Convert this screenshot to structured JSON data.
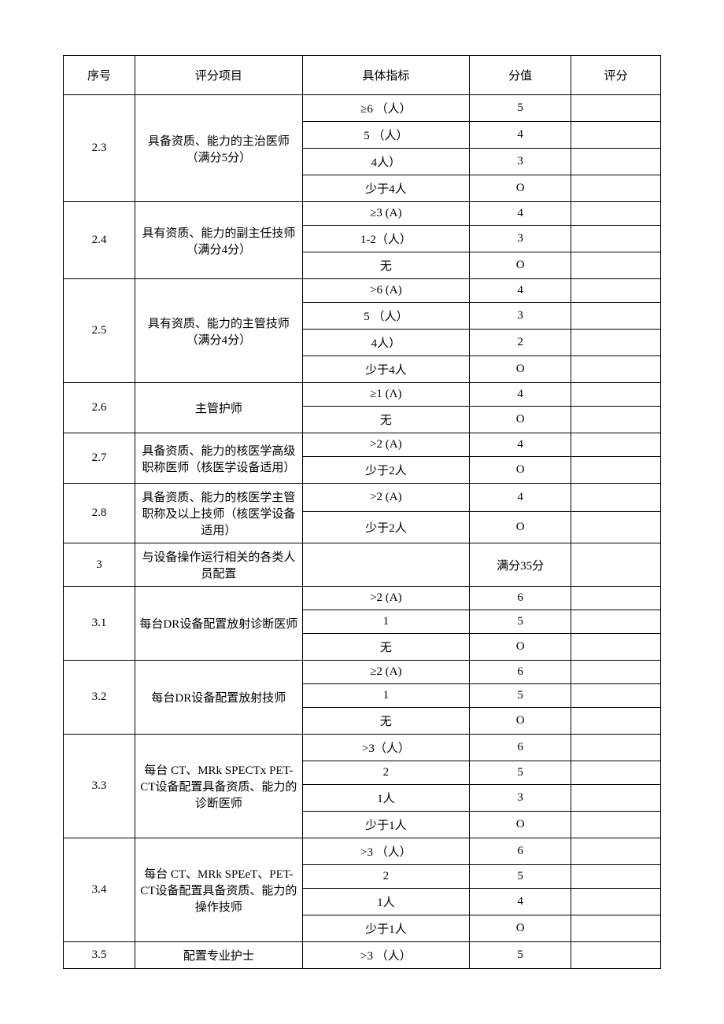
{
  "headers": [
    "序号",
    "评分项目",
    "具体指标",
    "分值",
    "评分"
  ],
  "sections": [
    {
      "id": "2.3",
      "item": "具备资质、能力的主治医师（满分5分）",
      "rows": [
        [
          "≥6 （人）",
          "5"
        ],
        [
          "5 （人）",
          "4"
        ],
        [
          "4人）",
          "3"
        ],
        [
          "少于4人",
          "O"
        ]
      ]
    },
    {
      "id": "2.4",
      "item": "具有资质、能力的副主任技师（满分4分）",
      "rows": [
        [
          "≥3 (A)",
          "4"
        ],
        [
          "1-2（人）",
          "3"
        ],
        [
          "无",
          "O"
        ]
      ]
    },
    {
      "id": "2.5",
      "item": "具有资质、能力的主管技师（满分4分）",
      "rows": [
        [
          ">6 (A)",
          "4"
        ],
        [
          "5 （人）",
          "3"
        ],
        [
          "4人）",
          "2"
        ],
        [
          "少于4人",
          "O"
        ]
      ]
    },
    {
      "id": "2.6",
      "item": "主管护师",
      "rows": [
        [
          "≥1 (Λ)",
          "4"
        ],
        [
          "无",
          "O"
        ]
      ]
    },
    {
      "id": "2.7",
      "item": "具备资质、能力的核医学高级职称医师（核医学设备适用）",
      "rows": [
        [
          ">2 (A)",
          "4"
        ],
        [
          "少于2人",
          "O"
        ]
      ]
    },
    {
      "id": "2.8",
      "item": "具备资质、能力的核医学主管职称及以上技师（核医学设备适用）",
      "rows": [
        [
          ">2 (A)",
          "4"
        ],
        [
          "少于2人",
          "O"
        ]
      ]
    },
    {
      "id": "3",
      "item": "与设备操作运行相关的各类人员配置",
      "rows": [
        [
          "",
          "满分35分"
        ]
      ]
    },
    {
      "id": "3.1",
      "item": "每台DR设备配置放射诊断医师",
      "rows": [
        [
          ">2 (A)",
          "6"
        ],
        [
          "1",
          "5"
        ],
        [
          "无",
          "O"
        ]
      ]
    },
    {
      "id": "3.2",
      "item": "每台DR设备配置放射技师",
      "rows": [
        [
          "≥2 (A)",
          "6"
        ],
        [
          "1",
          "5"
        ],
        [
          "无",
          "O"
        ]
      ]
    },
    {
      "id": "3.3",
      "item": "每台 CT、MRk SPECTx PET-CT设备配置具备资质、能力的诊断医师",
      "rows": [
        [
          ">3（人）",
          "6"
        ],
        [
          "2",
          "5"
        ],
        [
          "1人",
          "3"
        ],
        [
          "少于1人",
          "O"
        ]
      ]
    },
    {
      "id": "3.4",
      "item": "每台 CT、MRk SPEeT、PET-CT设备配置具备资质、能力的操作技师",
      "rows": [
        [
          ">3 （人）",
          "6"
        ],
        [
          "2",
          "5"
        ],
        [
          "1人",
          "4"
        ],
        [
          "少于1人",
          "O"
        ]
      ]
    },
    {
      "id": "3.5",
      "item": "配置专业护士",
      "rows": [
        [
          ">3 （人）",
          "5"
        ]
      ]
    }
  ]
}
